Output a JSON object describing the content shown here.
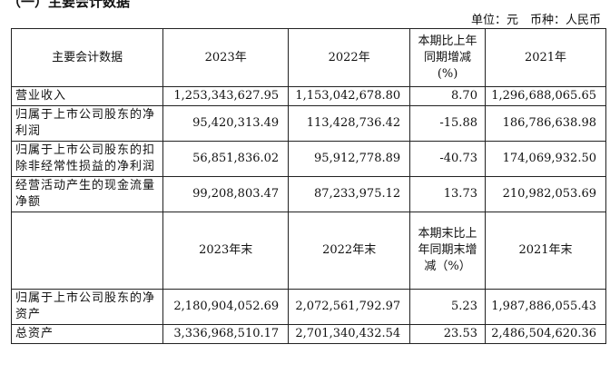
{
  "section_title": "（一）主要会计数据",
  "unit_note": "单位：元　币种：人民币",
  "table": {
    "header": [
      "主要会计数据",
      "2023年",
      "2022年",
      "本期比上年同期增减(%)",
      "2021年"
    ],
    "rows": [
      [
        "营业收入",
        "1,253,343,627.95",
        "1,153,042,678.80",
        "8.70",
        "1,296,688,065.65"
      ],
      [
        "归属于上市公司股东的净利润",
        "95,420,313.49",
        "113,428,736.42",
        "-15.88",
        "186,786,638.98"
      ],
      [
        "归属于上市公司股东的扣除非经常性损益的净利润",
        "56,851,836.02",
        "95,912,778.89",
        "-40.73",
        "174,069,932.50"
      ],
      [
        "经营活动产生的现金流量净额",
        "99,208,803.47",
        "87,233,975.12",
        "13.73",
        "210,982,053.69"
      ]
    ],
    "header2": [
      "",
      "2023年末",
      "2022年末",
      "本期末比上年同期末增减（%）",
      "2021年末"
    ],
    "rows2": [
      [
        "归属于上市公司股东的净资产",
        "2,180,904,052.69",
        "2,072,561,792.97",
        "5.23",
        "1,987,886,055.43"
      ],
      [
        "总资产",
        "3,336,968,510.17",
        "2,701,340,432.54",
        "23.53",
        "2,486,504,620.36"
      ]
    ]
  }
}
